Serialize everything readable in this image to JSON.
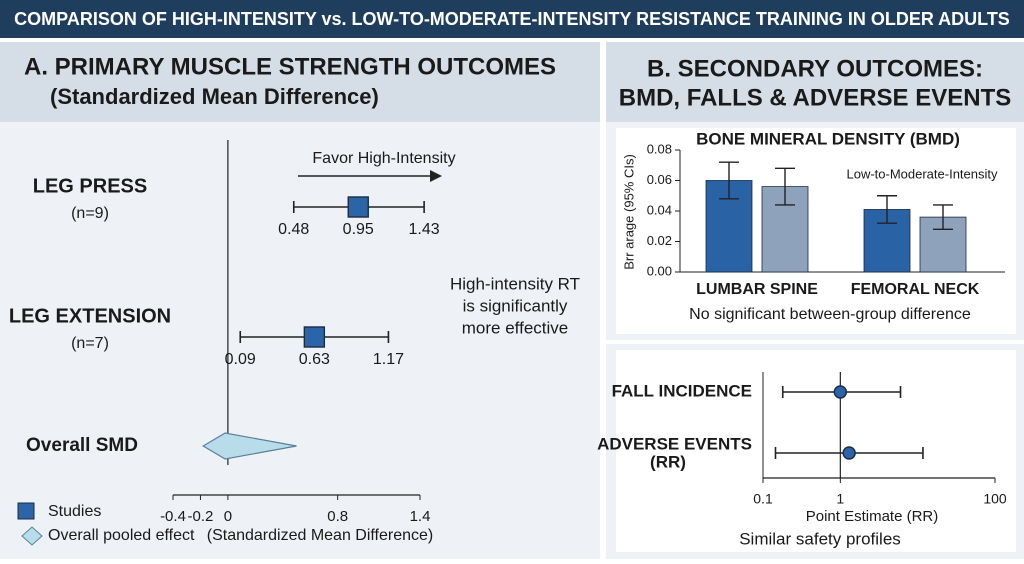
{
  "title": "COMPARISON OF HIGH-INTENSITY vs. LOW-TO-MODERATE-INTENSITY RESISTANCE TRAINING IN OLDER ADULTS",
  "panels": [
    {
      "title": "A. PRIMARY MUSCLE STRENGTH OUTCOMES",
      "subtitle": "(Standardized Mean Difference)"
    },
    {
      "title": "B. SECONDARY OUTCOMES:",
      "subtitle": "BMD, FALLS & ADVERSE EVENTS"
    }
  ],
  "chart_data": [
    {
      "type": "forest",
      "annotation": "Favor High-Intensity",
      "note": [
        "High-intensity RT",
        "is significantly",
        "more effective"
      ],
      "studies": [
        {
          "label": "LEG PRESS",
          "sub": "(n=9)",
          "value": 0.95,
          "ci": [
            0.48,
            1.43
          ]
        },
        {
          "label": "LEG EXTENSION",
          "sub": "(n=7)",
          "value": 0.63,
          "ci": [
            0.09,
            1.17
          ]
        }
      ],
      "overall": {
        "label": "Overall SMD",
        "value": -0.02,
        "ci": [
          -0.18,
          0.5
        ]
      },
      "legend": [
        "Studies",
        "Overall pooled effect"
      ],
      "xlabel": "(Standardized Mean Difference)",
      "xlim": [
        -0.4,
        1.4
      ],
      "xticks": [
        -0.4,
        -0.2,
        0,
        0.8,
        1.4
      ],
      "refline": 0,
      "color": "#2c64a8",
      "overall_color": "#b8dcea"
    },
    {
      "type": "bar",
      "title": "BONE MINERAL DENSITY (BMD)",
      "ylabel": "Brr arage (95% CIs)",
      "categories": [
        "LUMBAR SPINE",
        "FEMORAL NECK"
      ],
      "series": [
        {
          "color": "#2a62a6",
          "values": [
            0.06,
            0.041
          ],
          "errors": [
            0.012,
            0.009
          ]
        },
        {
          "name": "Low-to-Moderate-Intensity",
          "color": "#8fa2bb",
          "values": [
            0.056,
            0.036
          ],
          "errors": [
            0.012,
            0.008
          ]
        }
      ],
      "note": "No significant between-group difference",
      "ylim": [
        0,
        0.08
      ],
      "yticks": [
        {
          "value": 0,
          "label": "0.00"
        },
        0.02,
        0.04,
        0.06,
        0.08
      ]
    },
    {
      "type": "forest",
      "log": true,
      "studies": [
        {
          "label": "FALL INCIDENCE",
          "value": 1,
          "ci": [
            0.18,
            6
          ]
        },
        {
          "label": "ADVERSE EVENTS",
          "sub": "(RR)",
          "value": 1.3,
          "ci": [
            0.145,
            11.7
          ]
        }
      ],
      "xlabel": "Point Estimate (RR)",
      "note": "Similar safety profiles",
      "xlim": [
        0.1,
        100
      ],
      "xticks": [
        0.1,
        1,
        100
      ],
      "refline": 1,
      "color": "#2c64a8"
    }
  ]
}
